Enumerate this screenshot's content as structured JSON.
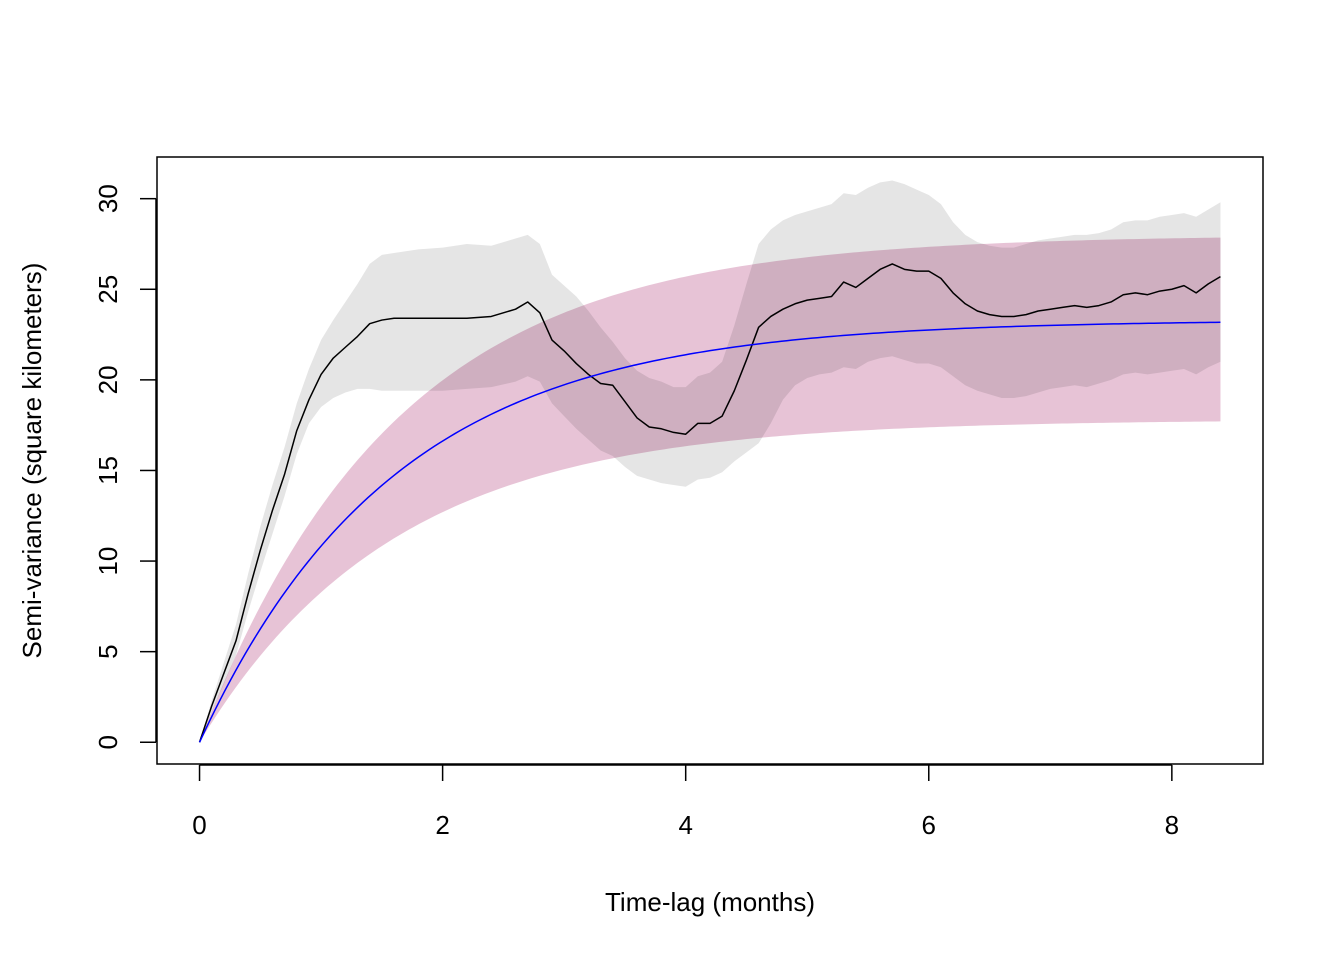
{
  "chart_data": {
    "type": "line",
    "title": "",
    "xlabel": "Time-lag (months)",
    "ylabel": "Semi-variance (square kilometers)",
    "xlim": [
      -0.35,
      8.75
    ],
    "ylim": [
      -1.2,
      32.3
    ],
    "grid": false,
    "legend": "none",
    "x_ticks": [
      0,
      2,
      4,
      6,
      8
    ],
    "x_tick_labels": [
      "0",
      "2",
      "4",
      "6",
      "8"
    ],
    "y_ticks": [
      0,
      5,
      10,
      15,
      20,
      25,
      30
    ],
    "y_tick_labels": [
      "0",
      "5",
      "10",
      "15",
      "20",
      "25",
      "30"
    ],
    "colors": {
      "empirical_line": "#000000",
      "empirical_band": "#e5e5e5",
      "model_line": "#0000ff",
      "model_band": "#e3b8cf",
      "band_overlap": "#d2a7bd"
    },
    "series": [
      {
        "role": "empirical",
        "x": [
          0,
          0.1,
          0.2,
          0.3,
          0.4,
          0.5,
          0.6,
          0.7,
          0.8,
          0.9,
          1.0,
          1.1,
          1.2,
          1.3,
          1.4,
          1.5,
          1.6,
          1.8,
          2.0,
          2.2,
          2.4,
          2.6,
          2.7,
          2.8,
          2.9,
          3.0,
          3.1,
          3.2,
          3.3,
          3.4,
          3.5,
          3.6,
          3.7,
          3.8,
          3.9,
          4.0,
          4.1,
          4.2,
          4.3,
          4.4,
          4.5,
          4.6,
          4.7,
          4.8,
          4.9,
          5.0,
          5.1,
          5.2,
          5.3,
          5.4,
          5.5,
          5.6,
          5.7,
          5.8,
          5.9,
          6.0,
          6.1,
          6.2,
          6.3,
          6.4,
          6.5,
          6.6,
          6.7,
          6.8,
          6.9,
          7.0,
          7.1,
          7.2,
          7.3,
          7.4,
          7.5,
          7.6,
          7.7,
          7.8,
          7.9,
          8.0,
          8.1,
          8.2,
          8.3,
          8.4
        ],
        "y": [
          0,
          2.0,
          3.8,
          5.6,
          8.2,
          10.6,
          12.8,
          14.8,
          17.2,
          18.9,
          20.3,
          21.2,
          21.8,
          22.4,
          23.1,
          23.3,
          23.4,
          23.4,
          23.4,
          23.4,
          23.5,
          23.9,
          24.3,
          23.7,
          22.2,
          21.6,
          20.9,
          20.3,
          19.8,
          19.7,
          18.8,
          17.9,
          17.4,
          17.3,
          17.1,
          17.0,
          17.6,
          17.6,
          18.0,
          19.4,
          21.1,
          22.9,
          23.5,
          23.9,
          24.2,
          24.4,
          24.5,
          24.6,
          25.4,
          25.1,
          25.6,
          26.1,
          26.4,
          26.1,
          26.0,
          26.0,
          25.6,
          24.8,
          24.2,
          23.8,
          23.6,
          23.5,
          23.5,
          23.6,
          23.8,
          23.9,
          24.0,
          24.1,
          24.0,
          24.1,
          24.3,
          24.7,
          24.8,
          24.7,
          24.9,
          25.0,
          25.2,
          24.8,
          25.3,
          25.7
        ],
        "lower": [
          0,
          1.7,
          3.2,
          4.8,
          7.2,
          9.4,
          11.5,
          13.6,
          15.9,
          17.6,
          18.5,
          19.0,
          19.3,
          19.5,
          19.5,
          19.4,
          19.4,
          19.4,
          19.4,
          19.5,
          19.6,
          19.9,
          20.2,
          19.9,
          18.7,
          18.0,
          17.3,
          16.7,
          16.1,
          15.8,
          15.2,
          14.7,
          14.5,
          14.3,
          14.2,
          14.1,
          14.5,
          14.6,
          14.9,
          15.5,
          16.0,
          16.5,
          17.6,
          18.9,
          19.7,
          20.1,
          20.3,
          20.4,
          20.7,
          20.6,
          21.0,
          21.2,
          21.3,
          21.1,
          20.9,
          20.9,
          20.7,
          20.2,
          19.7,
          19.4,
          19.2,
          19.0,
          19.0,
          19.1,
          19.3,
          19.5,
          19.6,
          19.7,
          19.6,
          19.8,
          20.0,
          20.3,
          20.4,
          20.3,
          20.4,
          20.5,
          20.6,
          20.3,
          20.7,
          21.0
        ],
        "upper": [
          0,
          2.3,
          4.4,
          6.5,
          9.3,
          11.9,
          14.2,
          16.3,
          18.7,
          20.6,
          22.2,
          23.3,
          24.3,
          25.3,
          26.4,
          26.9,
          27.0,
          27.2,
          27.3,
          27.5,
          27.4,
          27.8,
          28.0,
          27.5,
          25.8,
          25.2,
          24.6,
          23.8,
          22.9,
          22.1,
          21.2,
          20.5,
          20.1,
          19.9,
          19.6,
          19.6,
          20.2,
          20.4,
          21.0,
          23.0,
          25.3,
          27.5,
          28.3,
          28.8,
          29.1,
          29.3,
          29.5,
          29.7,
          30.3,
          30.2,
          30.6,
          30.9,
          31.0,
          30.8,
          30.5,
          30.2,
          29.7,
          28.7,
          28.0,
          27.6,
          27.4,
          27.3,
          27.3,
          27.5,
          27.7,
          27.8,
          27.9,
          28.0,
          28.0,
          28.1,
          28.3,
          28.7,
          28.8,
          28.8,
          29.0,
          29.1,
          29.2,
          29.0,
          29.4,
          29.8
        ]
      },
      {
        "role": "model",
        "sill": 23.3,
        "tau": 1.6,
        "lower_sill": 17.8,
        "upper_sill": 28.0,
        "x_max": 8.4
      }
    ]
  }
}
